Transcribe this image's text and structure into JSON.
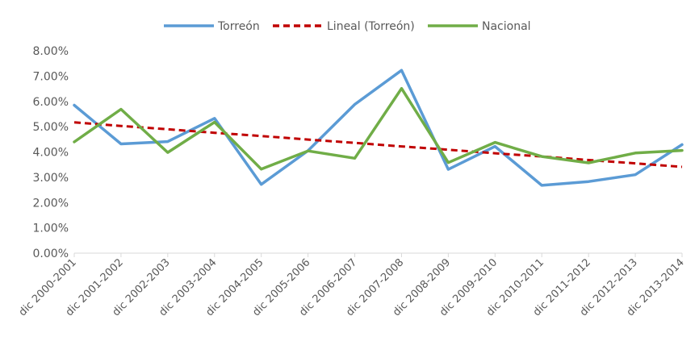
{
  "chart_data": {
    "type": "line",
    "title": "",
    "xlabel": "",
    "ylabel": "",
    "categories": [
      "dic 2000-2001",
      "dic 2001-2002",
      "dic 2002-2003",
      "dic 2003-2004",
      "dic 2004-2005",
      "dic 2005-2006",
      "dic 2006-2007",
      "dic 2007-2008",
      "dic 2008-2009",
      "dic 2009-2010",
      "dic 2010-2011",
      "dic 2011-2012",
      "dic 2012-2013",
      "dic 2013-2014"
    ],
    "ylim": [
      0,
      0.08
    ],
    "yticks": [
      "0.00%",
      "1.00%",
      "2.00%",
      "3.00%",
      "4.00%",
      "5.00%",
      "6.00%",
      "7.00%",
      "8.00%"
    ],
    "grid": false,
    "legend_position": "top-center",
    "series": [
      {
        "name": "Torreón",
        "color": "#5b9bd5",
        "style": "solid",
        "values": [
          0.0585,
          0.0432,
          0.0441,
          0.0533,
          0.0272,
          0.0405,
          0.0588,
          0.0723,
          0.0331,
          0.0422,
          0.0268,
          0.0283,
          0.031,
          0.0429
        ]
      },
      {
        "name": "Lineal (Torreón)",
        "color": "#c00000",
        "style": "dashed",
        "values": [
          0.0517,
          0.0503,
          0.049,
          0.0476,
          0.0463,
          0.0449,
          0.0436,
          0.0422,
          0.0409,
          0.0395,
          0.0382,
          0.0368,
          0.0355,
          0.0341
        ]
      },
      {
        "name": "Nacional",
        "color": "#70ad47",
        "style": "solid",
        "values": [
          0.044,
          0.0569,
          0.0398,
          0.0518,
          0.0332,
          0.0404,
          0.0375,
          0.0651,
          0.0358,
          0.0438,
          0.0382,
          0.0357,
          0.0396,
          0.0406
        ]
      }
    ]
  }
}
